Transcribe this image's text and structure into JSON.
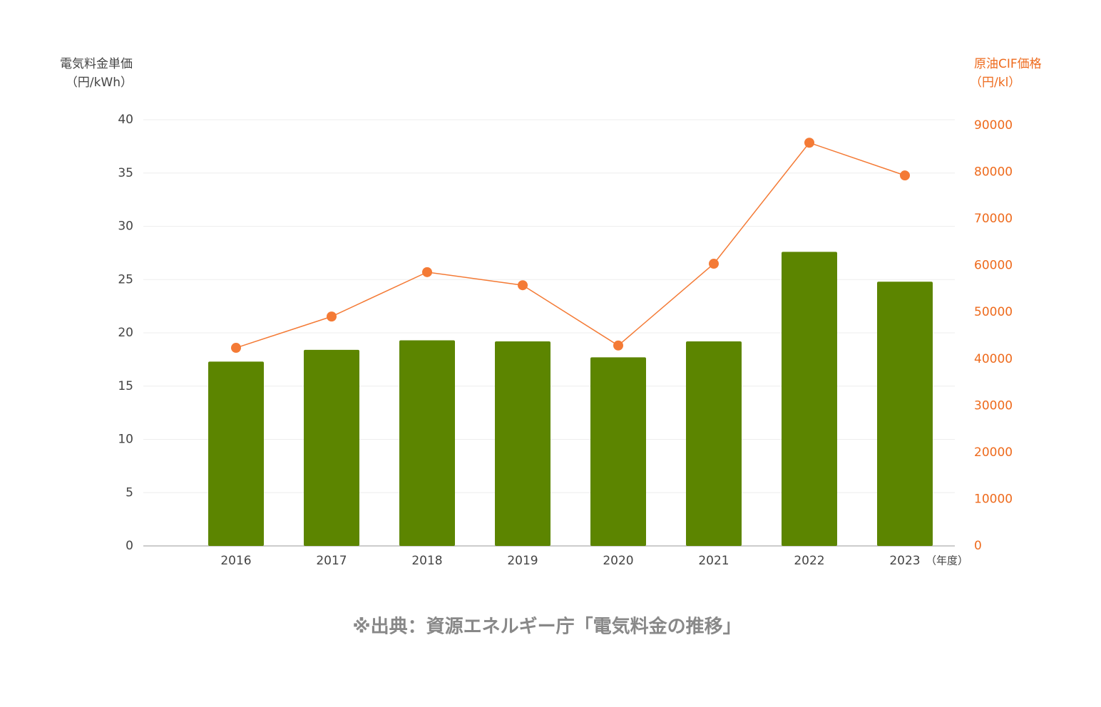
{
  "chart_data": {
    "type": "bar",
    "y_label": [
      "電気料金単価",
      "（円/kWh）"
    ],
    "y2_label": [
      "原油CIF価格",
      "（円/kl）"
    ],
    "x_label": "（年度）",
    "source": "※出典：資源エネルギー庁「電気料金の推移」",
    "categories": [
      "2016",
      "2017",
      "2018",
      "2019",
      "2020",
      "2021",
      "2022",
      "2023"
    ],
    "series": [
      {
        "type": "bar",
        "color": "#5c8500",
        "values": [
          17.3,
          18.4,
          19.3,
          19.2,
          17.7,
          19.2,
          27.6,
          24.8
        ]
      },
      {
        "type": "line",
        "axis": "y2",
        "color": "#f47a35",
        "values": [
          42400,
          49100,
          58600,
          55800,
          42900,
          60400,
          86300,
          79300
        ]
      }
    ],
    "ylim": [
      0,
      40
    ],
    "yticks": [
      0,
      5,
      10,
      15,
      20,
      25,
      30,
      35,
      40
    ],
    "y2lim": [
      0,
      90000
    ],
    "y2ticks": [
      0,
      10000,
      20000,
      30000,
      40000,
      50000,
      60000,
      70000,
      80000,
      90000
    ],
    "grid": true
  }
}
